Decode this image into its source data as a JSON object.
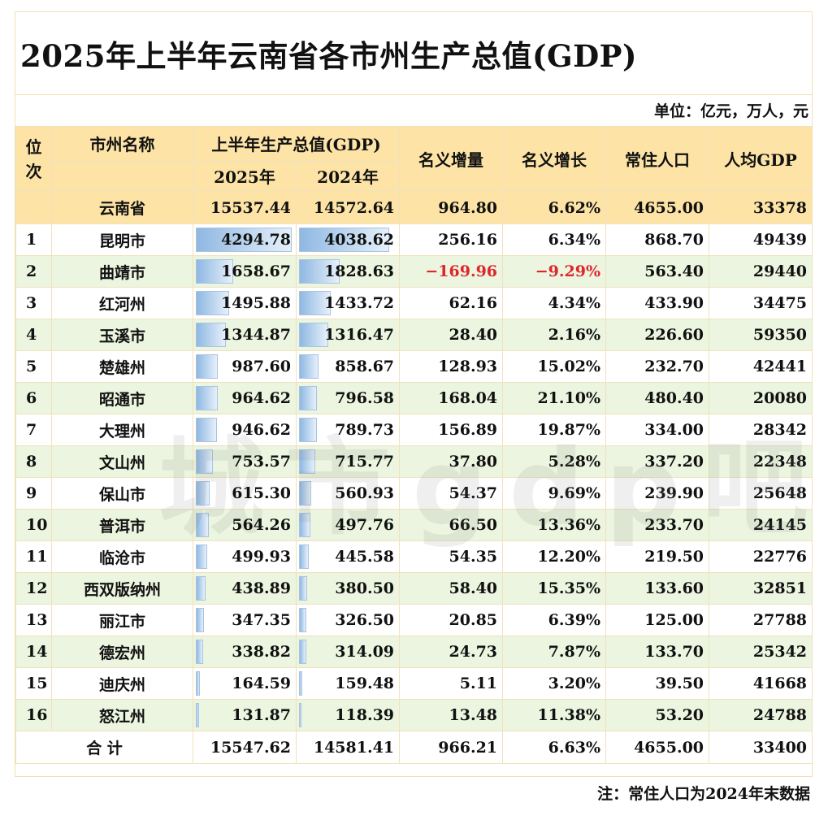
{
  "title": "2025年上半年云南省各市州生产总值(GDP)",
  "unit": "单位：亿元，万人，元",
  "headers": {
    "rank": "位次",
    "name": "市州名称",
    "gdp_group": "上半年生产总值(GDP)",
    "y2025": "2025年",
    "y2024": "2024年",
    "increase": "名义增量",
    "growth": "名义增长",
    "population": "常住人口",
    "per_capita": "人均GDP"
  },
  "province": {
    "name": "云南省",
    "gdp2025": "15537.44",
    "gdp2024": "14572.64",
    "increase": "964.80",
    "growth": "6.62%",
    "population": "4655.00",
    "per_capita": "33378"
  },
  "rows": [
    {
      "rank": "1",
      "name": "昆明市",
      "gdp2025": "4294.78",
      "gdp2024": "4038.62",
      "increase": "256.16",
      "growth": "6.34%",
      "population": "868.70",
      "per_capita": "49439"
    },
    {
      "rank": "2",
      "name": "曲靖市",
      "gdp2025": "1658.67",
      "gdp2024": "1828.63",
      "increase": "−169.96",
      "growth": "−9.29%",
      "population": "563.40",
      "per_capita": "29440"
    },
    {
      "rank": "3",
      "name": "红河州",
      "gdp2025": "1495.88",
      "gdp2024": "1433.72",
      "increase": "62.16",
      "growth": "4.34%",
      "population": "433.90",
      "per_capita": "34475"
    },
    {
      "rank": "4",
      "name": "玉溪市",
      "gdp2025": "1344.87",
      "gdp2024": "1316.47",
      "increase": "28.40",
      "growth": "2.16%",
      "population": "226.60",
      "per_capita": "59350"
    },
    {
      "rank": "5",
      "name": "楚雄州",
      "gdp2025": "987.60",
      "gdp2024": "858.67",
      "increase": "128.93",
      "growth": "15.02%",
      "population": "232.70",
      "per_capita": "42441"
    },
    {
      "rank": "6",
      "name": "昭通市",
      "gdp2025": "964.62",
      "gdp2024": "796.58",
      "increase": "168.04",
      "growth": "21.10%",
      "population": "480.40",
      "per_capita": "20080"
    },
    {
      "rank": "7",
      "name": "大理州",
      "gdp2025": "946.62",
      "gdp2024": "789.73",
      "increase": "156.89",
      "growth": "19.87%",
      "population": "334.00",
      "per_capita": "28342"
    },
    {
      "rank": "8",
      "name": "文山州",
      "gdp2025": "753.57",
      "gdp2024": "715.77",
      "increase": "37.80",
      "growth": "5.28%",
      "population": "337.20",
      "per_capita": "22348"
    },
    {
      "rank": "9",
      "name": "保山市",
      "gdp2025": "615.30",
      "gdp2024": "560.93",
      "increase": "54.37",
      "growth": "9.69%",
      "population": "239.90",
      "per_capita": "25648"
    },
    {
      "rank": "10",
      "name": "普洱市",
      "gdp2025": "564.26",
      "gdp2024": "497.76",
      "increase": "66.50",
      "growth": "13.36%",
      "population": "233.70",
      "per_capita": "24145"
    },
    {
      "rank": "11",
      "name": "临沧市",
      "gdp2025": "499.93",
      "gdp2024": "445.58",
      "increase": "54.35",
      "growth": "12.20%",
      "population": "219.50",
      "per_capita": "22776"
    },
    {
      "rank": "12",
      "name": "西双版纳州",
      "gdp2025": "438.89",
      "gdp2024": "380.50",
      "increase": "58.40",
      "growth": "15.35%",
      "population": "133.60",
      "per_capita": "32851"
    },
    {
      "rank": "13",
      "name": "丽江市",
      "gdp2025": "347.35",
      "gdp2024": "326.50",
      "increase": "20.85",
      "growth": "6.39%",
      "population": "125.00",
      "per_capita": "27788"
    },
    {
      "rank": "14",
      "name": "德宏州",
      "gdp2025": "338.82",
      "gdp2024": "314.09",
      "increase": "24.73",
      "growth": "7.87%",
      "population": "133.70",
      "per_capita": "25342"
    },
    {
      "rank": "15",
      "name": "迪庆州",
      "gdp2025": "164.59",
      "gdp2024": "159.48",
      "increase": "5.11",
      "growth": "3.20%",
      "population": "39.50",
      "per_capita": "41668"
    },
    {
      "rank": "16",
      "name": "怒江州",
      "gdp2025": "131.87",
      "gdp2024": "118.39",
      "increase": "13.48",
      "growth": "11.38%",
      "population": "53.20",
      "per_capita": "24788"
    }
  ],
  "total": {
    "label": "合 计",
    "gdp2025": "15547.62",
    "gdp2024": "14581.41",
    "increase": "966.21",
    "growth": "6.63%",
    "population": "4655.00",
    "per_capita": "33400"
  },
  "watermark": "城市gdp吧",
  "note": "注：常住人口为2024年末数据",
  "colors": {
    "header_bg": "#fde4a6",
    "even_row_bg": "#ebf5df",
    "negative": "#e0262b",
    "bar": "#8fb8e2"
  }
}
